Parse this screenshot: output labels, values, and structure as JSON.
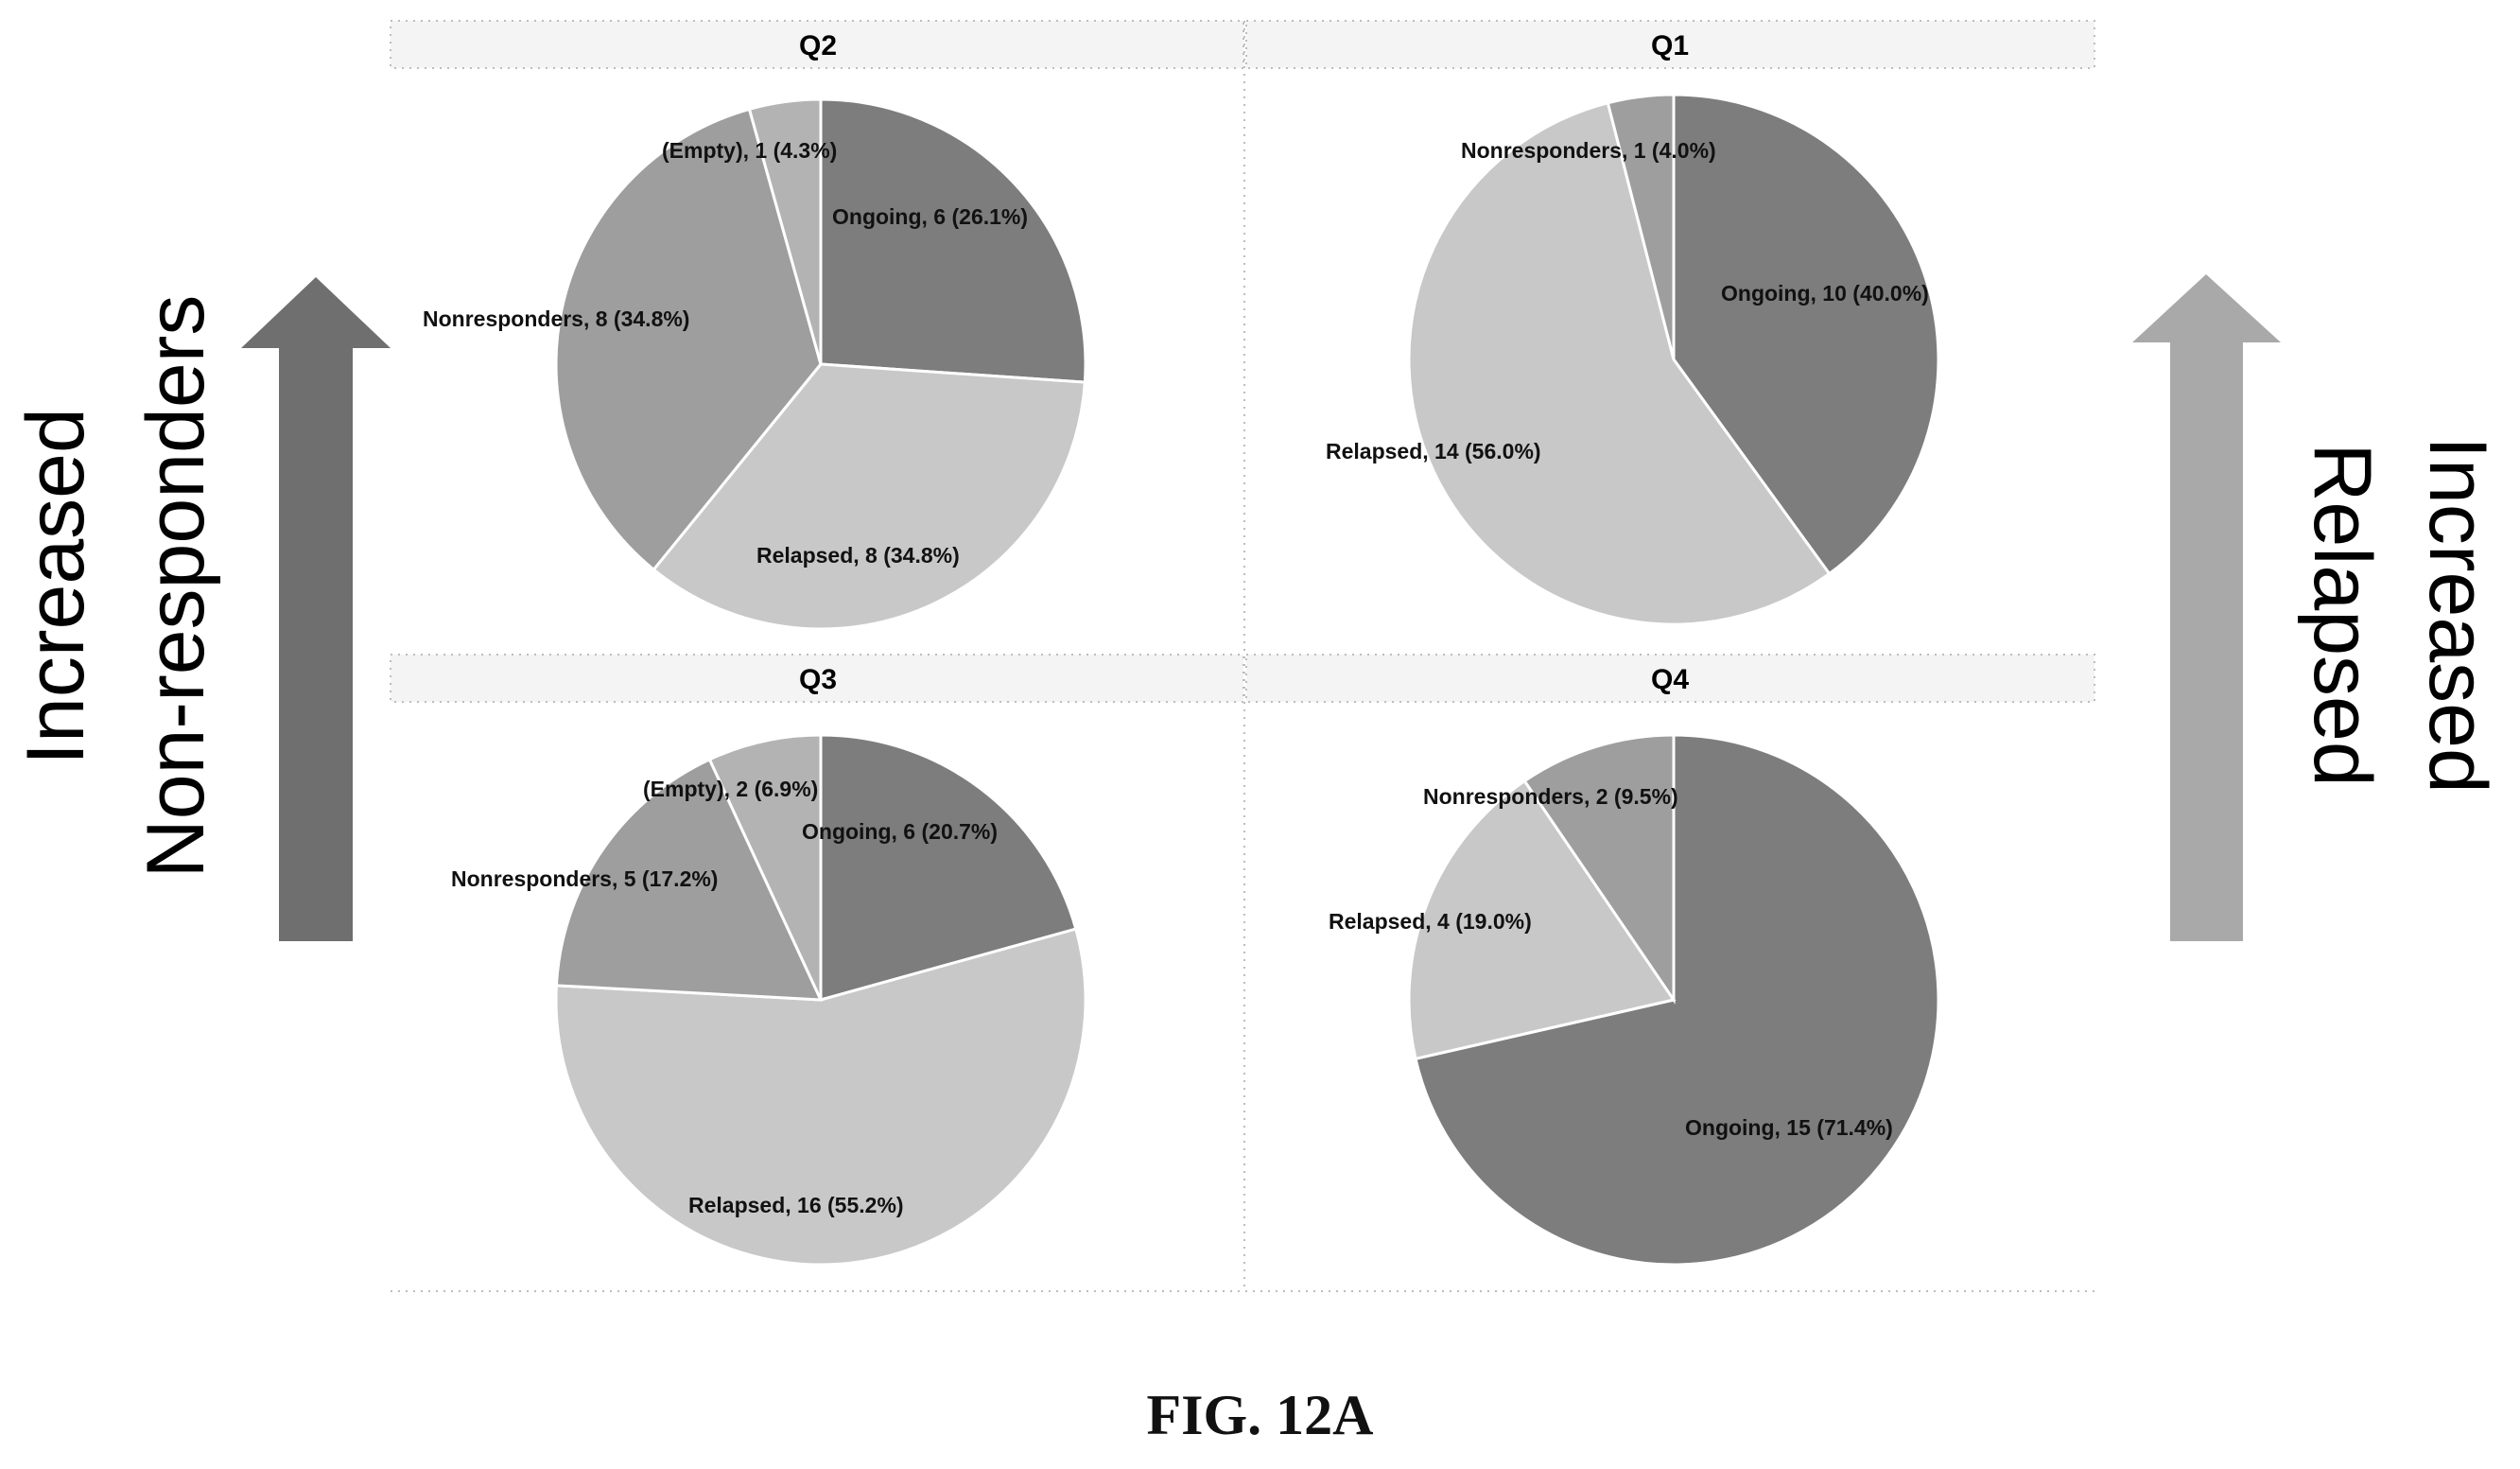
{
  "caption": "FIG. 12A",
  "side_labels": {
    "left": [
      "Increased",
      "Non-responders"
    ],
    "right": [
      "Increased",
      "Relapsed"
    ]
  },
  "colors": {
    "ongoing": "#7d7d7d",
    "relapsed": "#c8c8c8",
    "nonresponders": "#9e9e9e",
    "empty": "#b3b3b3",
    "left_arrow": "#6f6f6f",
    "right_arrow": "#a9a9a9",
    "slice_edge": "#ffffff",
    "label_text": "#111111"
  },
  "chart_data": [
    {
      "type": "pie",
      "title": "Q2",
      "slices": [
        {
          "name": "Ongoing",
          "value": 6,
          "percent": 26.1,
          "label": "Ongoing, 6 (26.1%)",
          "color_key": "ongoing"
        },
        {
          "name": "Relapsed",
          "value": 8,
          "percent": 34.8,
          "label": "Relapsed, 8 (34.8%)",
          "color_key": "relapsed"
        },
        {
          "name": "Nonresponders",
          "value": 8,
          "percent": 34.8,
          "label": "Nonresponders, 8 (34.8%)",
          "color_key": "nonresponders"
        },
        {
          "name": "(Empty)",
          "value": 1,
          "percent": 4.3,
          "label": "(Empty), 1 (4.3%)",
          "color_key": "empty"
        }
      ]
    },
    {
      "type": "pie",
      "title": "Q1",
      "slices": [
        {
          "name": "Ongoing",
          "value": 10,
          "percent": 40.0,
          "label": "Ongoing, 10 (40.0%)",
          "color_key": "ongoing"
        },
        {
          "name": "Relapsed",
          "value": 14,
          "percent": 56.0,
          "label": "Relapsed, 14 (56.0%)",
          "color_key": "relapsed"
        },
        {
          "name": "Nonresponders",
          "value": 1,
          "percent": 4.0,
          "label": "Nonresponders, 1 (4.0%)",
          "color_key": "nonresponders"
        }
      ]
    },
    {
      "type": "pie",
      "title": "Q3",
      "slices": [
        {
          "name": "Ongoing",
          "value": 6,
          "percent": 20.7,
          "label": "Ongoing, 6 (20.7%)",
          "color_key": "ongoing"
        },
        {
          "name": "Relapsed",
          "value": 16,
          "percent": 55.2,
          "label": "Relapsed, 16 (55.2%)",
          "color_key": "relapsed"
        },
        {
          "name": "Nonresponders",
          "value": 5,
          "percent": 17.2,
          "label": "Nonresponders, 5 (17.2%)",
          "color_key": "nonresponders"
        },
        {
          "name": "(Empty)",
          "value": 2,
          "percent": 6.9,
          "label": "(Empty), 2 (6.9%)",
          "color_key": "empty"
        }
      ]
    },
    {
      "type": "pie",
      "title": "Q4",
      "slices": [
        {
          "name": "Ongoing",
          "value": 15,
          "percent": 71.4,
          "label": "Ongoing, 15 (71.4%)",
          "color_key": "ongoing"
        },
        {
          "name": "Relapsed",
          "value": 4,
          "percent": 19.0,
          "label": "Relapsed, 4 (19.0%)",
          "color_key": "relapsed"
        },
        {
          "name": "Nonresponders",
          "value": 2,
          "percent": 9.5,
          "label": "Nonresponders, 2 (9.5%)",
          "color_key": "nonresponders"
        }
      ]
    }
  ]
}
